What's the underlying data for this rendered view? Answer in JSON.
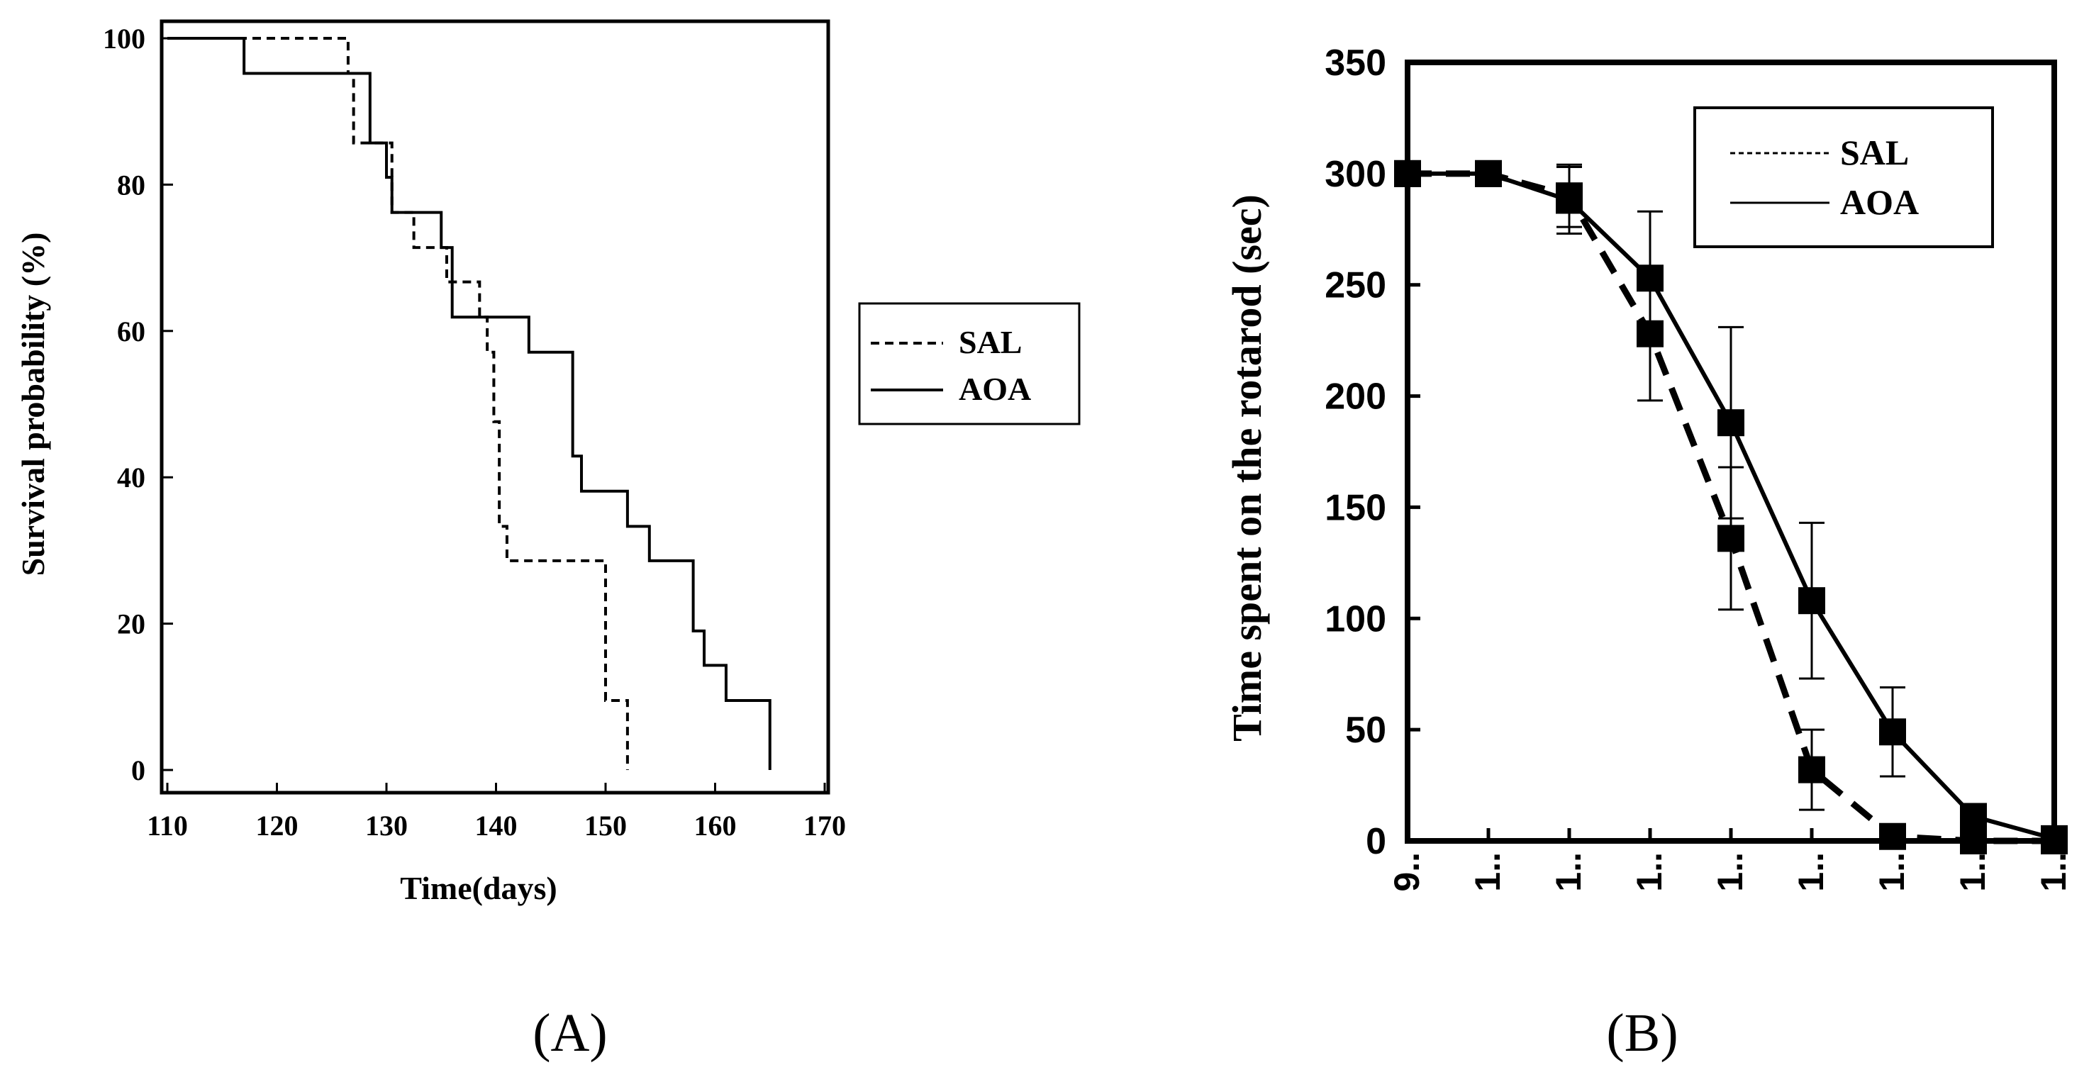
{
  "chart_data": [
    {
      "panel_label": "(A)",
      "type": "line",
      "subtype": "kaplan-meier step",
      "title": "",
      "xlabel": "Time(days)",
      "ylabel": "Survival probability (%)",
      "xlim": [
        110,
        170
      ],
      "ylim": [
        0,
        100
      ],
      "xticks": [
        "110",
        "120",
        "130",
        "140",
        "150",
        "160",
        "170"
      ],
      "yticks": [
        "0",
        "20",
        "40",
        "60",
        "80",
        "100"
      ],
      "legend": {
        "placement": "right-outside",
        "entries": [
          "SAL",
          "AOA"
        ]
      },
      "series": [
        {
          "name": "SAL",
          "style": "dashed",
          "x": [
            110,
            123,
            126.5,
            127,
            130.5,
            132.5,
            135.5,
            138.5,
            139.2,
            139.8,
            140.3,
            141,
            145,
            150,
            151,
            152,
            152
          ],
          "y": [
            100,
            100,
            95.2,
            85.7,
            76.2,
            71.4,
            66.7,
            61.9,
            57.1,
            47.6,
            33.3,
            28.6,
            28.6,
            9.5,
            9.5,
            4.8,
            0
          ]
        },
        {
          "name": "AOA",
          "style": "solid",
          "x": [
            110,
            117,
            127,
            128.5,
            130,
            130.5,
            135,
            136,
            142,
            143,
            147,
            147.8,
            152,
            154,
            158,
            159,
            161,
            165,
            165
          ],
          "y": [
            100,
            95.2,
            95.2,
            85.7,
            81,
            76.2,
            71.4,
            61.9,
            61.9,
            57.1,
            42.9,
            38.1,
            33.3,
            28.6,
            19,
            14.3,
            9.5,
            4.8,
            0
          ]
        }
      ]
    },
    {
      "panel_label": "(B)",
      "type": "line",
      "title": "",
      "xlabel": "",
      "ylabel": "Time spent on the rotarod (sec)",
      "ylim": [
        0,
        350
      ],
      "yticks": [
        "0",
        "50",
        "100",
        "150",
        "200",
        "250",
        "300",
        "350"
      ],
      "categories": [
        "9..",
        "1..",
        "1..",
        "1..",
        "1..",
        "1..",
        "1..",
        "1..",
        "1.."
      ],
      "legend": {
        "placement": "top-right",
        "entries": [
          "SAL",
          "AOA"
        ]
      },
      "series": [
        {
          "name": "SAL",
          "style": "dashed",
          "x": [
            0,
            1,
            2,
            3,
            4,
            5,
            6,
            7,
            8
          ],
          "values": [
            300,
            300,
            290,
            228,
            136,
            32,
            2,
            0,
            0
          ],
          "error": [
            0,
            0,
            14,
            30,
            32,
            18,
            0,
            0,
            0
          ]
        },
        {
          "name": "AOA",
          "style": "solid",
          "x": [
            0,
            1,
            2,
            3,
            4,
            5,
            6,
            7,
            8
          ],
          "values": [
            300,
            300,
            288,
            253,
            188,
            108,
            49,
            11,
            1
          ],
          "error": [
            0,
            0,
            15,
            30,
            43,
            35,
            20,
            0,
            0
          ]
        }
      ]
    }
  ]
}
